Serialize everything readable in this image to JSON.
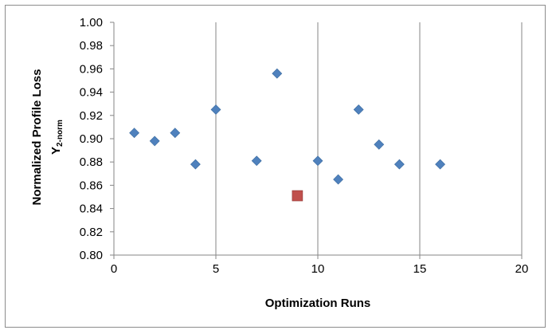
{
  "chart_data": {
    "type": "scatter",
    "xlabel": "Optimization Runs",
    "ylabel": "Normalized Profile Loss",
    "ylabel_symbol": "Y",
    "ylabel_subscript": "2-norm",
    "xlim": [
      0,
      20
    ],
    "ylim": [
      0.8,
      1.0
    ],
    "x_ticks": [
      "0",
      "5",
      "10",
      "15",
      "20"
    ],
    "y_ticks": [
      "0.80",
      "0.82",
      "0.84",
      "0.86",
      "0.88",
      "0.90",
      "0.92",
      "0.94",
      "0.96",
      "0.98",
      "1.00"
    ],
    "x_tick_values": [
      0,
      5,
      10,
      15,
      20
    ],
    "y_tick_values": [
      0.8,
      0.82,
      0.84,
      0.86,
      0.88,
      0.9,
      0.92,
      0.94,
      0.96,
      0.98,
      1.0
    ],
    "grid": "vertical major gridlines",
    "legend": "none",
    "series": [
      {
        "marker": "diamond",
        "color": "#4f81bd",
        "points": [
          {
            "x": 1,
            "y": 0.905
          },
          {
            "x": 2,
            "y": 0.898
          },
          {
            "x": 3,
            "y": 0.905
          },
          {
            "x": 4,
            "y": 0.878
          },
          {
            "x": 5,
            "y": 0.925
          },
          {
            "x": 7,
            "y": 0.881
          },
          {
            "x": 8,
            "y": 0.956
          },
          {
            "x": 10,
            "y": 0.881
          },
          {
            "x": 11,
            "y": 0.865
          },
          {
            "x": 12,
            "y": 0.925
          },
          {
            "x": 13,
            "y": 0.895
          },
          {
            "x": 14,
            "y": 0.878
          },
          {
            "x": 16,
            "y": 0.878
          }
        ]
      },
      {
        "marker": "square",
        "color": "#c0504d",
        "points": [
          {
            "x": 9,
            "y": 0.851
          }
        ]
      }
    ]
  }
}
